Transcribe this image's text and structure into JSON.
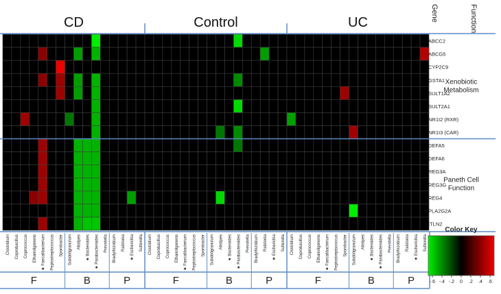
{
  "chart_data": {
    "type": "heatmap",
    "groups": [
      "CD",
      "Control",
      "UC"
    ],
    "column_header_right": [
      "Gene",
      "Function"
    ],
    "columns": [
      {
        "label": "Clostridium",
        "phylum": "F",
        "star": false
      },
      {
        "label": "Coprobacillus",
        "phylum": "F",
        "star": false
      },
      {
        "label": "Coprococcus",
        "phylum": "F",
        "star": false
      },
      {
        "label": "Ethanoligenens",
        "phylum": "F",
        "star": false
      },
      {
        "label": "Faecalibacterium",
        "phylum": "F",
        "star": true
      },
      {
        "label": "Peptostreptococcus",
        "phylum": "F",
        "star": false
      },
      {
        "label": "Sporobacter",
        "phylum": "F",
        "star": false
      },
      {
        "label": "Subdoligranulum",
        "phylum": "B",
        "star": false
      },
      {
        "label": "Alistipes",
        "phylum": "B",
        "star": false
      },
      {
        "label": "Bacteroides",
        "phylum": "B",
        "star": true
      },
      {
        "label": "Parabacteroides",
        "phylum": "B",
        "star": true
      },
      {
        "label": "Prevotella",
        "phylum": "B",
        "star": false
      },
      {
        "label": "Bradyrhizobium",
        "phylum": "P",
        "star": false
      },
      {
        "label": "Ralstonia",
        "phylum": "P",
        "star": false
      },
      {
        "label": "Escherichia",
        "phylum": "P",
        "star": true
      },
      {
        "label": "Sutterella",
        "phylum": "P",
        "star": false
      }
    ],
    "phyla": [
      "F",
      "B",
      "P"
    ],
    "rows": [
      "ABCC2",
      "ABCG5",
      "CYP2C9",
      "GSTA1",
      "SULT1A2",
      "SULT2A1",
      "NR1I2 (RXR)",
      "NR1I3 (CAR)",
      "DEFA5",
      "DEFA6",
      "REG3A",
      "REG3G",
      "REG4",
      "PLA2G2A",
      "ITLN2"
    ],
    "functions": [
      {
        "label_lines": [
          "Xenobiotic",
          "Metabolism"
        ],
        "rows": [
          0,
          7
        ]
      },
      {
        "label_lines": [
          "Paneth Cell",
          "Function"
        ],
        "rows": [
          8,
          14
        ]
      }
    ],
    "values": {
      "CD": [
        [
          0,
          0,
          0,
          0,
          0,
          0,
          0,
          0,
          0,
          0,
          -0.6,
          0,
          0,
          0,
          0,
          0
        ],
        [
          0,
          0,
          0,
          0,
          0.35,
          0,
          0,
          0,
          -0.4,
          0,
          -0.45,
          0,
          0,
          0,
          0,
          0
        ],
        [
          0,
          0,
          0,
          0,
          0,
          0,
          0.75,
          0,
          0,
          0,
          0,
          0,
          0,
          0,
          0,
          0
        ],
        [
          0,
          0,
          0,
          0,
          0.35,
          0,
          0.4,
          0,
          -0.4,
          0,
          -0.45,
          0,
          0,
          0,
          0,
          0
        ],
        [
          0,
          0,
          0,
          0,
          0,
          0,
          0.4,
          0,
          -0.4,
          0,
          -0.45,
          0,
          0,
          0,
          0,
          0
        ],
        [
          0,
          0,
          0,
          0,
          0,
          0,
          0,
          0,
          0,
          0,
          -0.45,
          0,
          0,
          0,
          0,
          0
        ],
        [
          0,
          0,
          0.4,
          0,
          0,
          0,
          0,
          -0.3,
          0,
          0,
          -0.45,
          0,
          0,
          0,
          0,
          0
        ],
        [
          0,
          0,
          0,
          0,
          0,
          0,
          0,
          0,
          0,
          0,
          -0.45,
          0,
          0,
          0,
          0,
          0
        ],
        [
          0,
          0,
          0,
          0,
          0.4,
          0,
          0,
          0,
          -0.45,
          -0.45,
          -0.45,
          0,
          0,
          0,
          0,
          0
        ],
        [
          0,
          0,
          0,
          0,
          0.4,
          0,
          0,
          0,
          -0.45,
          -0.45,
          -0.45,
          0,
          0,
          0,
          0,
          0
        ],
        [
          0,
          0,
          0,
          0,
          0.4,
          0,
          0,
          0,
          -0.45,
          -0.45,
          -0.45,
          0,
          0,
          0,
          0,
          0
        ],
        [
          0,
          0,
          0,
          0,
          0.4,
          0,
          0,
          0,
          -0.45,
          -0.45,
          -0.45,
          0,
          0,
          0,
          0,
          0
        ],
        [
          0,
          0,
          0,
          0.35,
          0.4,
          0,
          0,
          0,
          -0.45,
          -0.45,
          -0.45,
          0,
          0,
          0,
          -0.4,
          0
        ],
        [
          0,
          0,
          0,
          0,
          0,
          0,
          0,
          0,
          -0.45,
          -0.45,
          -0.45,
          0,
          0,
          0,
          0,
          0
        ],
        [
          0,
          0,
          0,
          0,
          0.4,
          0,
          0,
          0,
          -0.45,
          -0.5,
          -0.5,
          0,
          0,
          0,
          0,
          0
        ]
      ],
      "Control": [
        [
          0,
          0,
          0,
          0,
          0,
          0,
          0,
          0,
          0,
          0,
          -0.55,
          0,
          0,
          0,
          0,
          0
        ],
        [
          0,
          0,
          0,
          0,
          0,
          0,
          0,
          0,
          0,
          0,
          0,
          0,
          0,
          -0.4,
          0,
          0
        ],
        [
          0,
          0,
          0,
          0,
          0,
          0,
          0,
          0,
          0,
          0,
          0,
          0,
          0,
          0,
          0,
          0
        ],
        [
          0,
          0,
          0,
          0,
          0,
          0,
          0,
          0,
          0,
          0,
          -0.35,
          0,
          0,
          0,
          0,
          0
        ],
        [
          0,
          0,
          0,
          0,
          0,
          0,
          0,
          0,
          0,
          0,
          0,
          0,
          0,
          0,
          0,
          0
        ],
        [
          0,
          0,
          0,
          0,
          0,
          0,
          0,
          0,
          0,
          0,
          -0.55,
          0,
          0,
          0,
          0,
          0
        ],
        [
          0,
          0,
          0,
          0,
          0,
          0,
          0,
          0,
          0,
          0,
          0,
          0,
          0,
          0,
          0,
          0
        ],
        [
          0,
          0,
          0,
          0,
          0,
          0,
          0,
          0,
          -0.3,
          0,
          -0.35,
          0,
          0,
          0,
          0,
          0
        ],
        [
          0,
          0,
          0,
          0,
          0,
          0,
          0,
          0,
          0,
          0,
          -0.3,
          0,
          0,
          0,
          0,
          0
        ],
        [
          0,
          0,
          0,
          0,
          0,
          0,
          0,
          0,
          0,
          0,
          0,
          0,
          0,
          0,
          0,
          0
        ],
        [
          0,
          0,
          0,
          0,
          0,
          0,
          0,
          0,
          0,
          0,
          0,
          0,
          0,
          0,
          0,
          0
        ],
        [
          0,
          0,
          0,
          0,
          0,
          0,
          0,
          0,
          0,
          0,
          0,
          0,
          0,
          0,
          0,
          0
        ],
        [
          0,
          0,
          0,
          0,
          0,
          0,
          0,
          0,
          -0.55,
          0,
          0,
          0,
          0,
          0,
          0,
          0
        ],
        [
          0,
          0,
          0,
          0,
          0,
          0,
          0,
          0,
          0,
          0,
          0,
          0,
          0,
          0,
          0,
          0
        ],
        [
          0,
          0,
          0,
          0,
          0,
          0,
          0,
          0,
          0,
          0,
          0,
          0,
          0,
          0,
          0,
          0
        ]
      ],
      "UC": [
        [
          0,
          0,
          0,
          0,
          0,
          0,
          0,
          0,
          0,
          0,
          0,
          0,
          0,
          0,
          0,
          0
        ],
        [
          0,
          0,
          0,
          0,
          0,
          0,
          0,
          0,
          0,
          0,
          0,
          0,
          0,
          0,
          0,
          0.45
        ],
        [
          0,
          0,
          0,
          0,
          0,
          0,
          0,
          0,
          0,
          0,
          0,
          0,
          0,
          0,
          0,
          0
        ],
        [
          0,
          0,
          0,
          0,
          0,
          0,
          0,
          0,
          0,
          0,
          0,
          0,
          0,
          0,
          0,
          0
        ],
        [
          0,
          0,
          0,
          0,
          0,
          0,
          0.4,
          0,
          0,
          0,
          0,
          0,
          0,
          0,
          0,
          0
        ],
        [
          0,
          0,
          0,
          0,
          0,
          0,
          0,
          0,
          0,
          0,
          0,
          0,
          0,
          0,
          0,
          0
        ],
        [
          -0.4,
          0,
          0,
          0,
          0,
          0,
          0,
          0,
          0,
          0,
          0,
          0,
          0,
          0,
          0,
          0
        ],
        [
          0,
          0,
          0,
          0,
          0,
          0,
          0,
          0.4,
          0,
          0,
          0,
          0,
          0,
          0,
          0,
          0
        ],
        [
          0,
          0,
          0,
          0,
          0,
          0,
          0,
          0,
          0,
          0,
          0,
          0,
          0,
          0,
          0,
          0
        ],
        [
          0,
          0,
          0,
          0,
          0,
          0,
          0,
          0,
          0,
          0,
          0,
          0,
          0,
          0,
          0,
          0
        ],
        [
          0,
          0,
          0,
          0,
          0,
          0,
          0,
          0,
          0,
          0,
          0,
          0,
          0,
          0,
          0,
          0
        ],
        [
          0,
          0,
          0,
          0,
          0,
          0,
          0,
          0,
          0,
          0,
          0,
          0,
          0,
          0,
          0,
          0
        ],
        [
          0,
          0,
          0,
          0,
          0,
          0,
          0,
          0,
          0,
          0,
          0,
          0,
          0,
          0,
          0,
          0
        ],
        [
          0,
          0,
          0,
          0,
          0,
          0,
          0,
          -0.65,
          0,
          0,
          0,
          0,
          0,
          0,
          0,
          0
        ],
        [
          0,
          0,
          0,
          0,
          0,
          0,
          0,
          0,
          0,
          0,
          0,
          0,
          0,
          0,
          0,
          0
        ]
      ]
    },
    "color_key": {
      "title": "Color Key",
      "ticks": [
        "-.6",
        "-.4",
        "-.2",
        "0",
        ".2",
        ".4",
        ".6"
      ],
      "range": [
        -0.6,
        0.6
      ],
      "low_color": "#00ee00",
      "mid_color": "#000000",
      "high_color": "#ee0000"
    },
    "colors": {
      "divider": "#5b8cc6",
      "grid": "#404040"
    }
  }
}
